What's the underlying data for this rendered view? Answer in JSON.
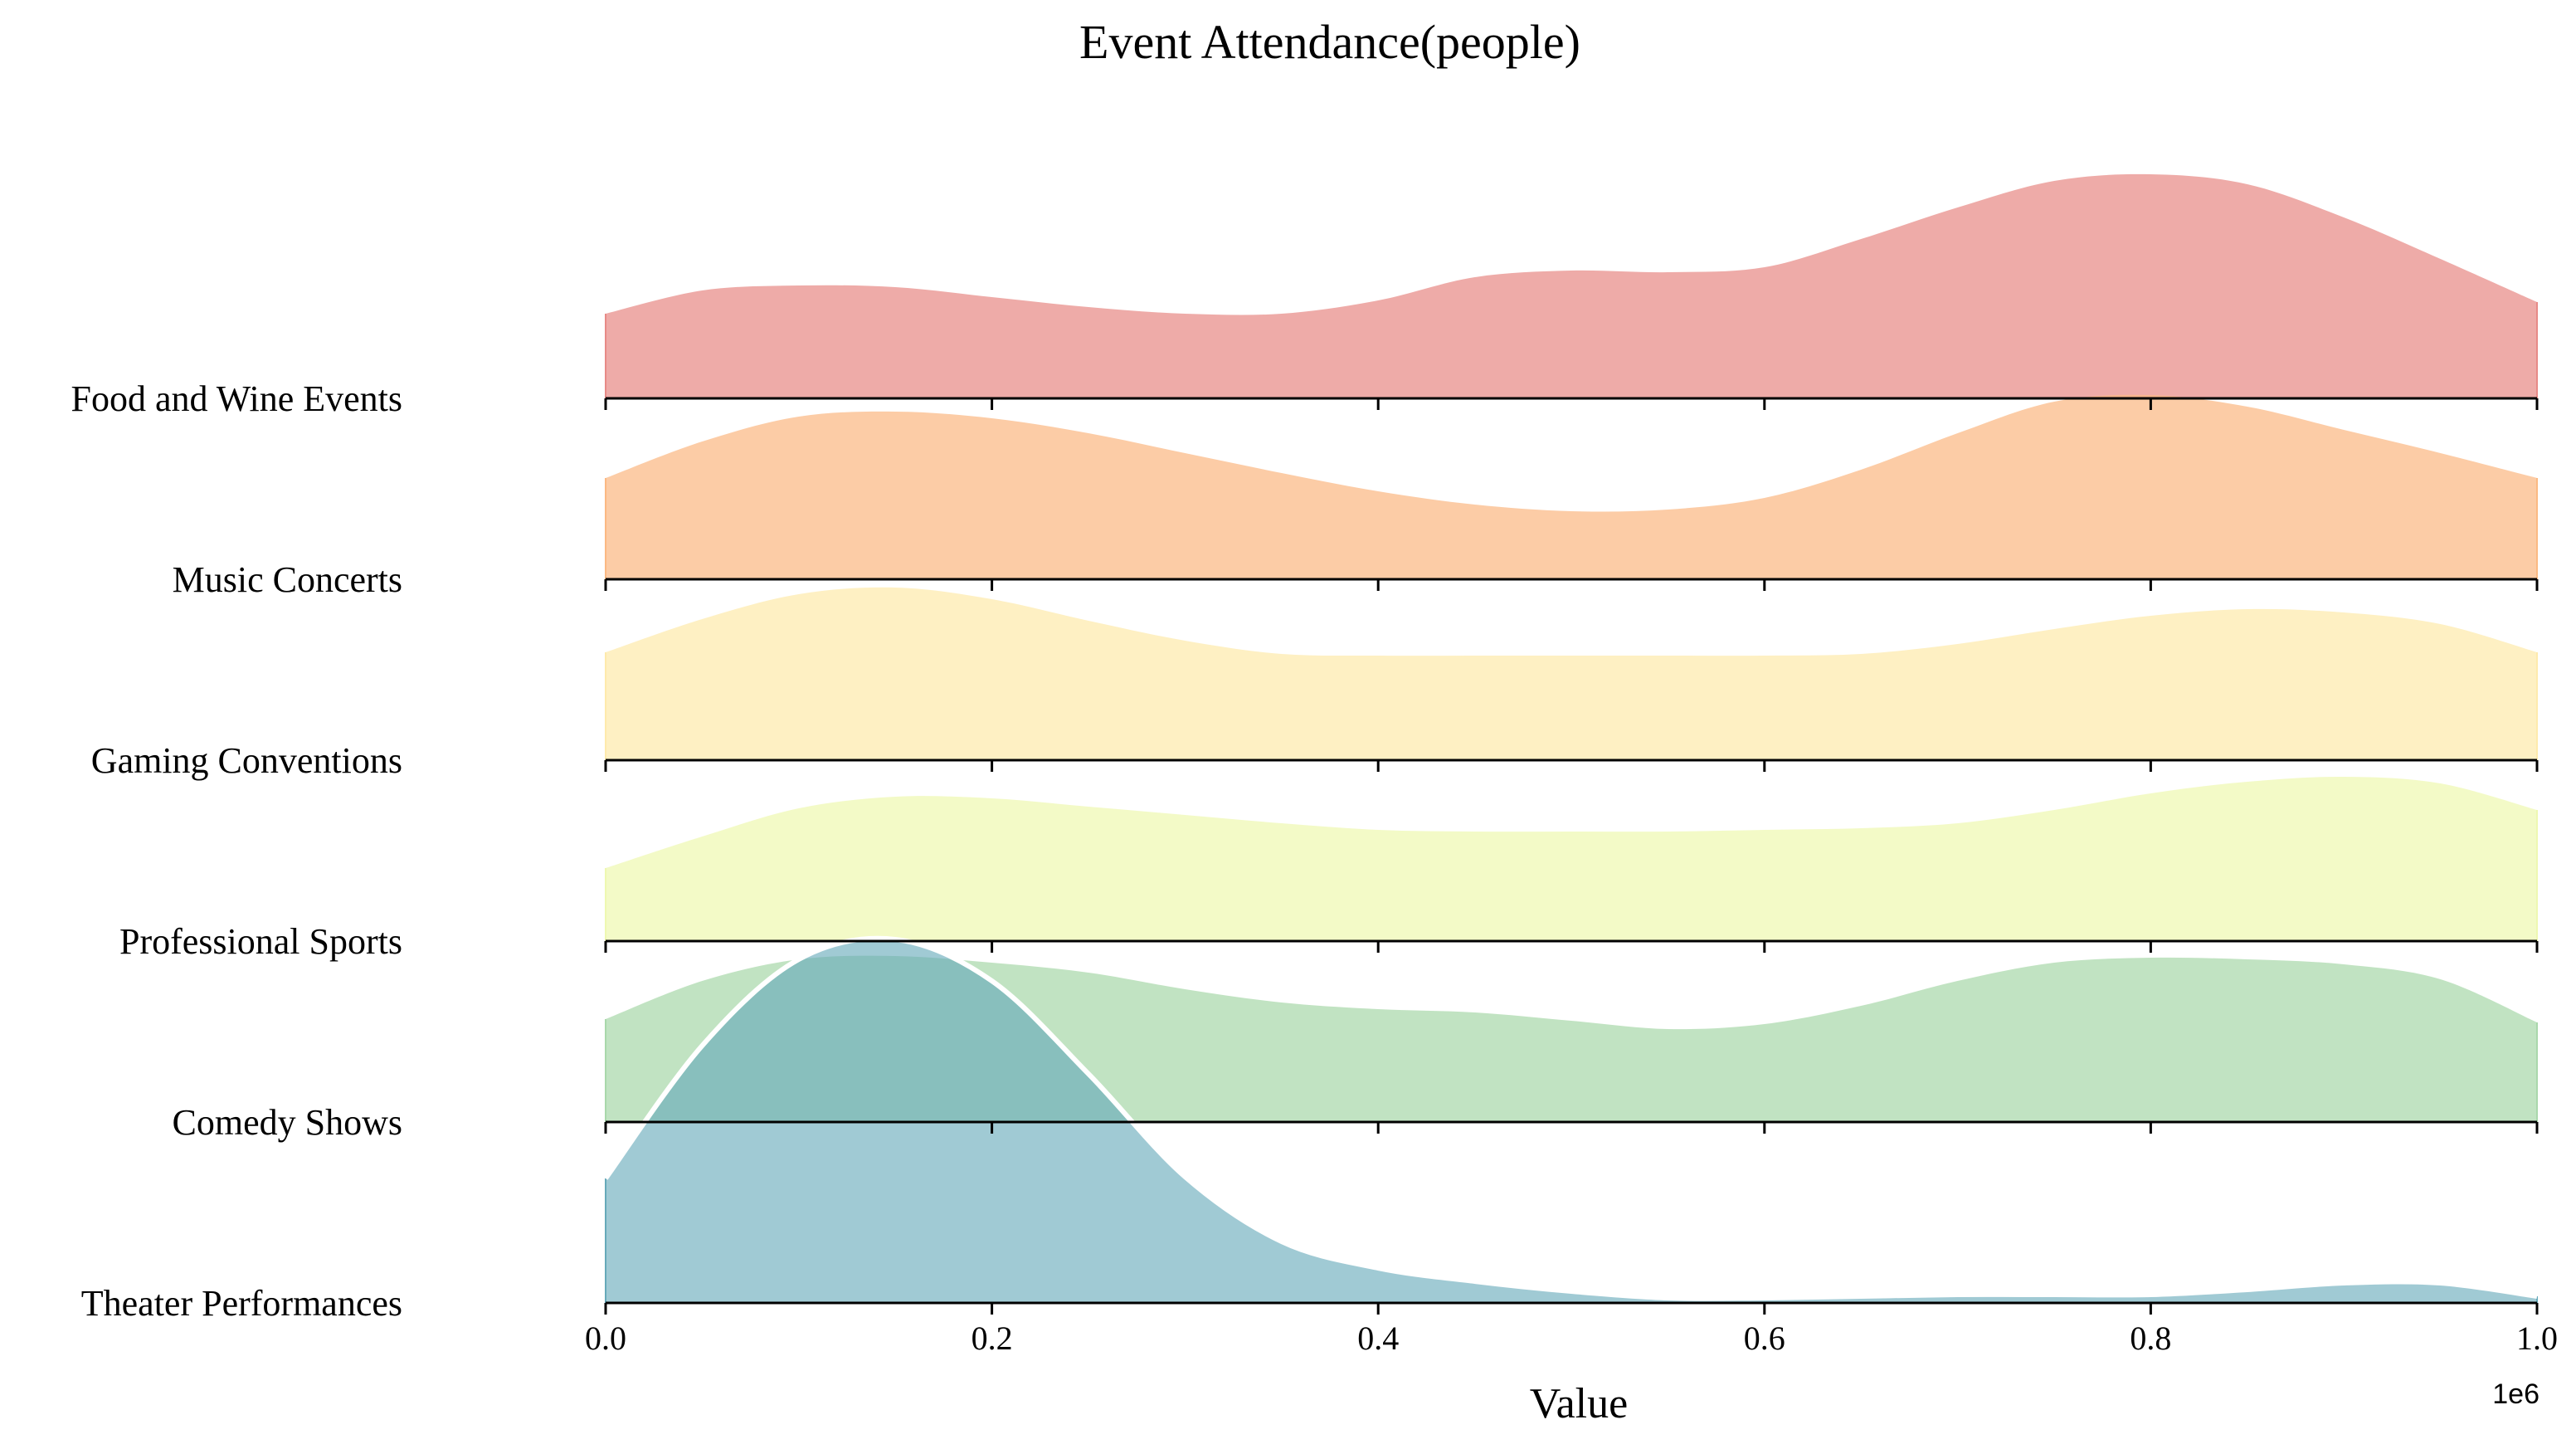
{
  "chart_data": {
    "type": "ridgeline",
    "title": "Event Attendance(people)",
    "xlabel": "Value",
    "x_offset_label": "1e6",
    "xlim": [
      0,
      1.0
    ],
    "x_ticks": [
      0.0,
      0.2,
      0.4,
      0.6,
      0.8,
      1.0
    ],
    "x_tick_labels": [
      "0.0",
      "0.2",
      "0.4",
      "0.6",
      "0.8",
      "1.0"
    ],
    "x_grid": [
      0,
      0.05,
      0.1,
      0.15,
      0.2,
      0.25,
      0.3,
      0.35,
      0.4,
      0.45,
      0.5,
      0.55,
      0.6,
      0.65,
      0.7,
      0.75,
      0.8,
      0.85,
      0.9,
      0.95,
      1.0
    ],
    "grid": false,
    "series": [
      {
        "name": "Food and Wine Events",
        "color": "#e78a87",
        "density": [
          0.51,
          0.65,
          0.68,
          0.67,
          0.61,
          0.55,
          0.51,
          0.51,
          0.59,
          0.73,
          0.77,
          0.76,
          0.79,
          0.96,
          1.15,
          1.31,
          1.35,
          1.29,
          1.09,
          0.84,
          0.58
        ]
      },
      {
        "name": "Music Concerts",
        "color": "#fbb983",
        "density": [
          0.61,
          0.83,
          0.98,
          1.01,
          0.97,
          0.88,
          0.76,
          0.64,
          0.53,
          0.45,
          0.41,
          0.42,
          0.49,
          0.66,
          0.88,
          1.07,
          1.11,
          1.04,
          0.9,
          0.76,
          0.61
        ]
      },
      {
        "name": "Gaming Conventions",
        "color": "#feeaac",
        "density": [
          0.65,
          0.85,
          1.0,
          1.04,
          0.97,
          0.84,
          0.72,
          0.64,
          0.63,
          0.63,
          0.63,
          0.63,
          0.63,
          0.64,
          0.7,
          0.79,
          0.87,
          0.91,
          0.89,
          0.82,
          0.65
        ]
      },
      {
        "name": "Professional Sports",
        "color": "#eef8b1",
        "density": [
          0.44,
          0.63,
          0.8,
          0.87,
          0.86,
          0.81,
          0.76,
          0.71,
          0.67,
          0.66,
          0.66,
          0.66,
          0.67,
          0.68,
          0.71,
          0.79,
          0.89,
          0.96,
          0.99,
          0.95,
          0.79
        ]
      },
      {
        "name": "Comedy Shows",
        "color": "#a9d8ab",
        "density": [
          0.62,
          0.85,
          0.98,
          1.0,
          0.96,
          0.9,
          0.8,
          0.72,
          0.68,
          0.66,
          0.61,
          0.56,
          0.59,
          0.7,
          0.85,
          0.96,
          0.99,
          0.98,
          0.95,
          0.86,
          0.6
        ]
      },
      {
        "name": "Theater Performances",
        "color": "#66a9b9",
        "density": [
          0.75,
          1.55,
          2.07,
          2.19,
          1.94,
          1.38,
          0.76,
          0.37,
          0.21,
          0.13,
          0.07,
          0.03,
          0.03,
          0.04,
          0.05,
          0.05,
          0.05,
          0.08,
          0.12,
          0.12,
          0.04
        ]
      }
    ]
  }
}
